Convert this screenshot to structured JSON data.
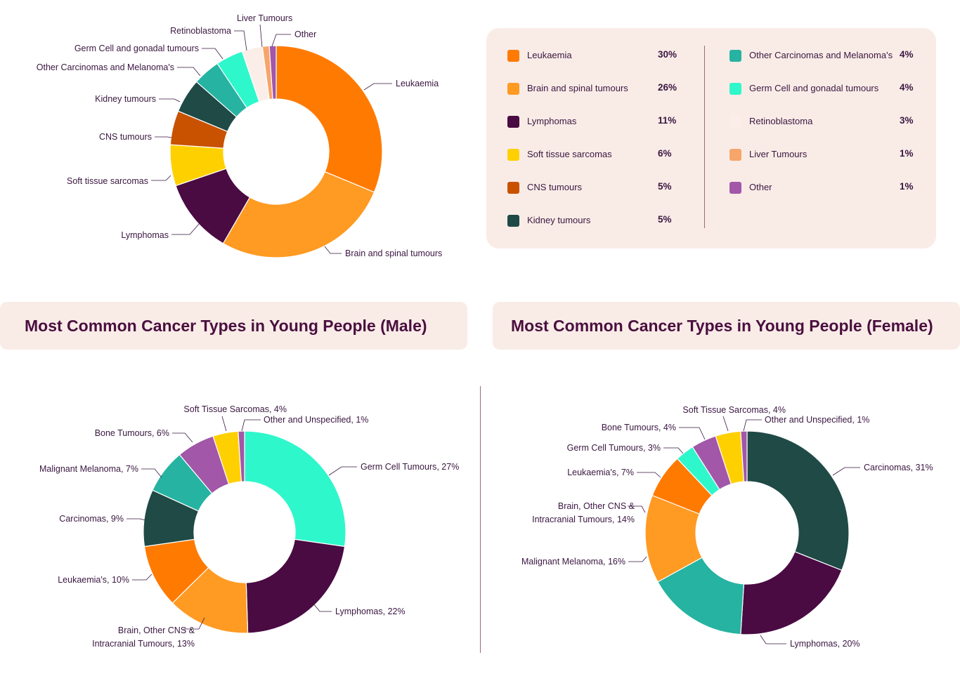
{
  "chart_data": [
    {
      "type": "pie",
      "title": "",
      "categories": [
        "Leukaemia",
        "Brain and spinal tumours",
        "Lymphomas",
        "Soft tissue sarcomas",
        "CNS tumours",
        "Kidney tumours",
        "Other Carcinomas and Melanoma's",
        "Germ Cell and gonadal tumours",
        "Retinoblastoma",
        "Liver Tumours",
        "Other"
      ],
      "values": [
        30,
        26,
        11,
        6,
        5,
        5,
        4,
        4,
        3,
        1,
        1
      ],
      "value_labels": [
        "30%",
        "26%",
        "11%",
        "6%",
        "5%",
        "5%",
        "4%",
        "4%",
        "3%",
        "1%",
        "1%"
      ],
      "colors": [
        "#ff7a00",
        "#ff9a22",
        "#4a0a42",
        "#ffd000",
        "#c85200",
        "#1f4a46",
        "#26b3a1",
        "#2ff7cc",
        "#fbeee8",
        "#f7a56a",
        "#a257a8"
      ],
      "legend": "right"
    },
    {
      "type": "pie",
      "title": "Most Common Cancer Types in Young People (Male)",
      "categories": [
        "Germ Cell Tumours",
        "Lymphomas",
        "Brain, Other CNS & Intracranial Tumours",
        "Leukaemia's",
        "Carcinomas",
        "Malignant Melanoma",
        "Bone Tumours",
        "Soft Tissue Sarcomas",
        "Other and Unspecified"
      ],
      "values": [
        27,
        22,
        13,
        10,
        9,
        7,
        6,
        4,
        1
      ],
      "labels": [
        "Germ Cell Tumours, 27%",
        "Lymphomas, 22%",
        "Brain, Other CNS &|Intracranial Tumours, 13%",
        "Leukaemia's, 10%",
        "Carcinomas, 9%",
        "Malignant Melanoma, 7%",
        "Bone Tumours, 6%",
        "Soft Tissue Sarcomas, 4%",
        "Other and Unspecified, 1%"
      ],
      "colors": [
        "#2ff7cc",
        "#4a0a42",
        "#ff9a22",
        "#ff7a00",
        "#1f4a46",
        "#26b3a1",
        "#a257a8",
        "#ffd000",
        "#a257a8"
      ]
    },
    {
      "type": "pie",
      "title": "Most Common Cancer Types in Young People (Female)",
      "categories": [
        "Carcinomas",
        "Lymphomas",
        "Malignant Melanoma",
        "Brain, Other CNS & Intracranial Tumours",
        "Leukaemia's",
        "Germ Cell Tumours",
        "Bone Tumours",
        "Soft Tissue Sarcomas",
        "Other and Unspecified"
      ],
      "values": [
        31,
        20,
        16,
        14,
        7,
        3,
        4,
        4,
        1
      ],
      "labels": [
        "Carcinomas, 31%",
        "Lymphomas, 20%",
        "Malignant Melanoma, 16%",
        "Brain, Other CNS &|Intracranial Tumours, 14%",
        "Leukaemia's, 7%",
        "Germ Cell Tumours, 3%",
        "Bone Tumours, 4%",
        "Soft Tissue Sarcomas, 4%",
        "Other and Unspecified, 1%"
      ],
      "colors": [
        "#1f4a46",
        "#4a0a42",
        "#26b3a1",
        "#ff9a22",
        "#ff7a00",
        "#2ff7cc",
        "#a257a8",
        "#ffd000",
        "#a257a8"
      ]
    }
  ],
  "legend": {
    "col1": [
      {
        "label": "Leukaemia",
        "value": "30%",
        "color": "#ff7a00"
      },
      {
        "label": "Brain and spinal tumours",
        "value": "26%",
        "color": "#ff9a22"
      },
      {
        "label": "Lymphomas",
        "value": "11%",
        "color": "#4a0a42"
      },
      {
        "label": "Soft tissue sarcomas",
        "value": "6%",
        "color": "#ffd000"
      },
      {
        "label": "CNS tumours",
        "value": "5%",
        "color": "#c85200"
      },
      {
        "label": "Kidney tumours",
        "value": "5%",
        "color": "#1f4a46"
      }
    ],
    "col2": [
      {
        "label": "Other Carcinomas and Melanoma's",
        "value": "4%",
        "color": "#26b3a1"
      },
      {
        "label": "Germ Cell and gonadal tumours",
        "value": "4%",
        "color": "#2ff7cc"
      },
      {
        "label": "Retinoblastoma",
        "value": "3%",
        "color": "#fbeee8"
      },
      {
        "label": "Liver Tumours",
        "value": "1%",
        "color": "#f7a56a"
      },
      {
        "label": "Other",
        "value": "1%",
        "color": "#a257a8"
      }
    ]
  },
  "titles": {
    "male": "Most Common Cancer Types in Young People (Male)",
    "female": "Most Common Cancer Types in Young People (Female)"
  }
}
